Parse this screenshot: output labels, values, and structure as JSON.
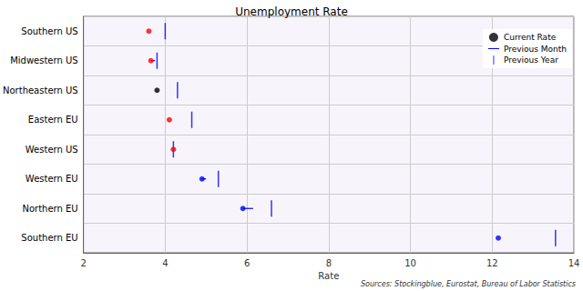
{
  "chart_data": {
    "type": "dot",
    "orientation": "horizontal",
    "title": "Unemployment Rate",
    "x_label": "Rate",
    "source": "Sources: Stockingblue, Eurostat, Bureau of Labor Statistics",
    "categories": [
      "Southern US",
      "Midwestern US",
      "Northeastern US",
      "Eastern EU",
      "Western US",
      "Western EU",
      "Northern EU",
      "Southern EU"
    ],
    "series": [
      {
        "name": "Current Rate",
        "type": "scatter",
        "marker": "circle",
        "values": [
          3.6,
          3.65,
          3.8,
          4.1,
          4.2,
          4.9,
          5.9,
          12.15
        ],
        "colors": [
          "#ff0000",
          "#ff0000",
          "#000000",
          "#ff0000",
          "#ff0000",
          "#0000ff",
          "#0000ff",
          "#0000ff"
        ]
      },
      {
        "name": "Previous Month",
        "type": "line",
        "marker": "hline",
        "color": "#0000ff",
        "values": [
          3.6,
          3.75,
          3.8,
          4.1,
          4.2,
          5.0,
          6.15,
          12.15
        ]
      },
      {
        "name": "Previous Year",
        "type": "scatter",
        "marker": "vline",
        "color": "#0000ff",
        "values": [
          4.0,
          3.8,
          4.3,
          4.65,
          4.2,
          5.3,
          6.6,
          13.55
        ]
      }
    ],
    "xlim": [
      2,
      14
    ],
    "xticks": [
      2,
      4,
      6,
      8,
      10,
      12,
      14
    ],
    "grid": true,
    "legend": "upper right"
  }
}
